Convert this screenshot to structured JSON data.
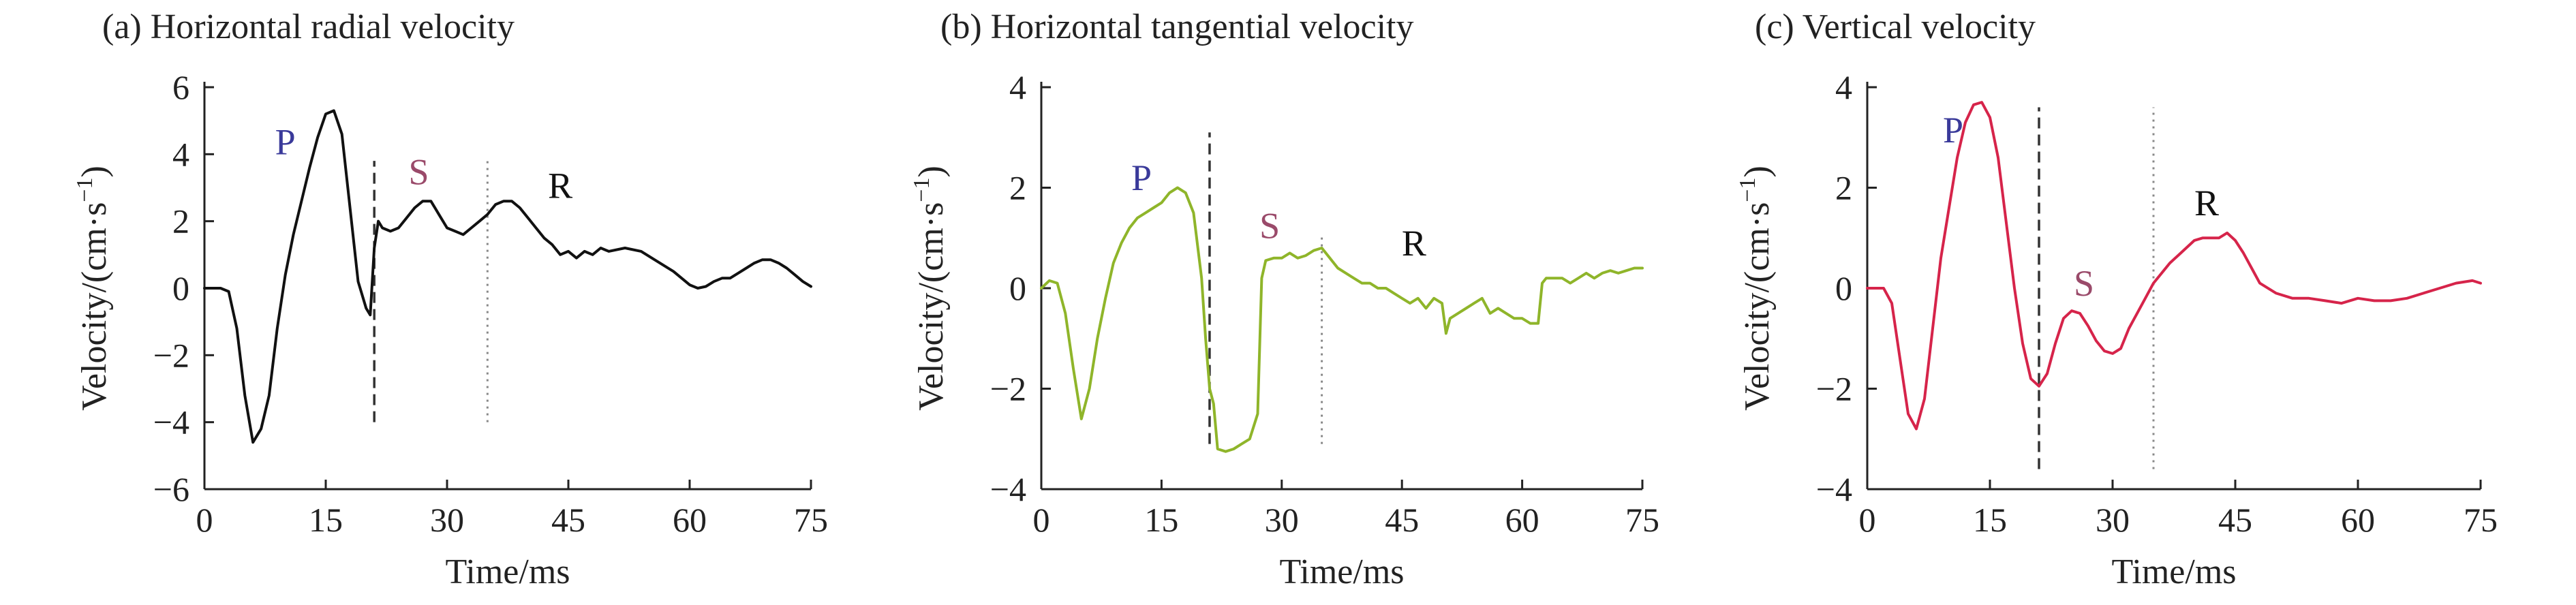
{
  "chart_data": [
    {
      "type": "line",
      "title": "(a) Horizontal radial velocity",
      "xlabel": "Time/ms",
      "ylabel": "Velocity/(cm·s",
      "ylabel_sup": "−1",
      "ylabel_close": ")",
      "xlim": [
        0,
        75
      ],
      "ylim": [
        -6,
        6
      ],
      "x_ticks": [
        0,
        15,
        30,
        45,
        60,
        75
      ],
      "x_tick_labels": [
        "0",
        "15",
        "30",
        "45",
        "60",
        "75"
      ],
      "y_ticks": [
        -6,
        -4,
        -2,
        0,
        2,
        4,
        6
      ],
      "y_tick_labels": [
        "−6",
        "−4",
        "−2",
        "0",
        "2",
        "4",
        "6"
      ],
      "grid": false,
      "series": [
        {
          "color": "#111111",
          "x": [
            0,
            2,
            3,
            4,
            5,
            6,
            7,
            8,
            9,
            10,
            11,
            12,
            13,
            14,
            15,
            16,
            17,
            18,
            19,
            20,
            20.5,
            21,
            21.5,
            22,
            23,
            24,
            25,
            26,
            27,
            28,
            29,
            30,
            31,
            32,
            33,
            34,
            35,
            36,
            37,
            38,
            39,
            40,
            41,
            42,
            43,
            44,
            45,
            46,
            47,
            48,
            49,
            50,
            52,
            54,
            56,
            58,
            60,
            61,
            62,
            63,
            64,
            65,
            66,
            67,
            68,
            69,
            70,
            71,
            72,
            73,
            74,
            75
          ],
          "y": [
            0,
            0,
            -0.1,
            -1.2,
            -3.2,
            -4.6,
            -4.2,
            -3.2,
            -1.2,
            0.4,
            1.6,
            2.6,
            3.6,
            4.5,
            5.2,
            5.3,
            4.6,
            2.4,
            0.2,
            -0.6,
            -0.8,
            1.2,
            2.0,
            1.8,
            1.7,
            1.8,
            2.1,
            2.4,
            2.6,
            2.6,
            2.2,
            1.8,
            1.7,
            1.6,
            1.8,
            2.0,
            2.2,
            2.5,
            2.6,
            2.6,
            2.4,
            2.1,
            1.8,
            1.5,
            1.3,
            1.0,
            1.1,
            0.9,
            1.1,
            1.0,
            1.2,
            1.1,
            1.2,
            1.1,
            0.8,
            0.5,
            0.1,
            0,
            0.05,
            0.2,
            0.3,
            0.3,
            0.45,
            0.6,
            0.75,
            0.85,
            0.85,
            0.75,
            0.6,
            0.4,
            0.2,
            0.05
          ]
        }
      ],
      "vlines": [
        {
          "x": 21,
          "y_from": -4,
          "y_to": 3.8,
          "style": "dashed",
          "color": "#333333"
        },
        {
          "x": 35,
          "y_from": -4,
          "y_to": 3.8,
          "style": "dotted",
          "color": "#888888"
        }
      ],
      "annotations": [
        {
          "text": "P",
          "x": 10,
          "y": 4.0,
          "color": "#3a3a9a"
        },
        {
          "text": "S",
          "x": 26.5,
          "y": 3.1,
          "color": "#9a4a6a"
        },
        {
          "text": "R",
          "x": 44,
          "y": 2.7,
          "color": "#111111"
        }
      ]
    },
    {
      "type": "line",
      "title": "(b) Horizontal tangential velocity",
      "xlabel": "Time/ms",
      "ylabel": "Velocity/(cm·s",
      "ylabel_sup": "−1",
      "ylabel_close": ")",
      "xlim": [
        0,
        75
      ],
      "ylim": [
        -4,
        4
      ],
      "x_ticks": [
        0,
        15,
        30,
        45,
        60,
        75
      ],
      "x_tick_labels": [
        "0",
        "15",
        "30",
        "45",
        "60",
        "75"
      ],
      "y_ticks": [
        -4,
        -2,
        0,
        2,
        4
      ],
      "y_tick_labels": [
        "−4",
        "−2",
        "0",
        "2",
        "4"
      ],
      "grid": false,
      "series": [
        {
          "color": "#8fb52a",
          "x": [
            0,
            1,
            2,
            3,
            4,
            5,
            6,
            7,
            8,
            9,
            10,
            11,
            12,
            13,
            14,
            15,
            16,
            17,
            18,
            19,
            20,
            20.5,
            21,
            21.5,
            22,
            23,
            24,
            25,
            26,
            27,
            27.5,
            28,
            29,
            30,
            31,
            32,
            33,
            34,
            35,
            36,
            37,
            38,
            39,
            40,
            41,
            42,
            43,
            44,
            45,
            46,
            47,
            48,
            49,
            50,
            50.5,
            51,
            52,
            53,
            54,
            55,
            56,
            57,
            58,
            59,
            60,
            61,
            62,
            62.5,
            63,
            64,
            65,
            66,
            67,
            68,
            69,
            70,
            71,
            72,
            73,
            74,
            75
          ],
          "y": [
            0,
            0.15,
            0.1,
            -0.5,
            -1.6,
            -2.6,
            -2.0,
            -1.0,
            -0.2,
            0.5,
            0.9,
            1.2,
            1.4,
            1.5,
            1.6,
            1.7,
            1.9,
            2.0,
            1.9,
            1.5,
            0.2,
            -1.0,
            -2.0,
            -2.3,
            -3.2,
            -3.25,
            -3.2,
            -3.1,
            -3.0,
            -2.5,
            0.2,
            0.55,
            0.6,
            0.6,
            0.7,
            0.6,
            0.65,
            0.75,
            0.8,
            0.6,
            0.4,
            0.3,
            0.2,
            0.1,
            0.1,
            0,
            0,
            -0.1,
            -0.2,
            -0.3,
            -0.2,
            -0.4,
            -0.2,
            -0.3,
            -0.9,
            -0.6,
            -0.5,
            -0.4,
            -0.3,
            -0.2,
            -0.5,
            -0.4,
            -0.5,
            -0.6,
            -0.6,
            -0.7,
            -0.7,
            0.1,
            0.2,
            0.2,
            0.2,
            0.1,
            0.2,
            0.3,
            0.2,
            0.3,
            0.35,
            0.3,
            0.35,
            0.4,
            0.4
          ]
        }
      ],
      "vlines": [
        {
          "x": 21,
          "y_from": -3.1,
          "y_to": 3.1,
          "style": "dashed",
          "color": "#333333"
        },
        {
          "x": 35,
          "y_from": -3.1,
          "y_to": 1.1,
          "style": "dotted",
          "color": "#888888"
        }
      ],
      "annotations": [
        {
          "text": "P",
          "x": 12.5,
          "y": 1.95,
          "color": "#3a3a9a"
        },
        {
          "text": "S",
          "x": 28.5,
          "y": 1.0,
          "color": "#9a4a6a"
        },
        {
          "text": "R",
          "x": 46.5,
          "y": 0.65,
          "color": "#111111"
        }
      ]
    },
    {
      "type": "line",
      "title": "(c) Vertical velocity",
      "xlabel": "Time/ms",
      "ylabel": "Velocity/(cm·s",
      "ylabel_sup": "−1",
      "ylabel_close": ")",
      "xlim": [
        0,
        75
      ],
      "ylim": [
        -4,
        4
      ],
      "x_ticks": [
        0,
        15,
        30,
        45,
        60,
        75
      ],
      "x_tick_labels": [
        "0",
        "15",
        "30",
        "45",
        "60",
        "75"
      ],
      "y_ticks": [
        -4,
        -2,
        0,
        2,
        4
      ],
      "y_tick_labels": [
        "−4",
        "−2",
        "0",
        "2",
        "4"
      ],
      "grid": false,
      "series": [
        {
          "color": "#d6244a",
          "x": [
            0,
            1,
            2,
            3,
            4,
            5,
            6,
            7,
            8,
            9,
            10,
            11,
            12,
            13,
            14,
            15,
            16,
            17,
            18,
            19,
            20,
            21,
            22,
            23,
            24,
            25,
            26,
            27,
            28,
            29,
            30,
            31,
            32,
            33,
            34,
            35,
            36,
            37,
            38,
            39,
            40,
            41,
            42,
            43,
            44,
            45,
            46,
            47,
            48,
            50,
            52,
            54,
            56,
            58,
            60,
            62,
            64,
            66,
            68,
            70,
            72,
            74,
            75
          ],
          "y": [
            0,
            0,
            0,
            -0.3,
            -1.4,
            -2.5,
            -2.8,
            -2.2,
            -0.8,
            0.6,
            1.6,
            2.6,
            3.3,
            3.65,
            3.7,
            3.4,
            2.6,
            1.3,
            0,
            -1.1,
            -1.8,
            -1.95,
            -1.7,
            -1.1,
            -0.6,
            -0.45,
            -0.5,
            -0.75,
            -1.05,
            -1.25,
            -1.3,
            -1.2,
            -0.8,
            -0.5,
            -0.2,
            0.1,
            0.3,
            0.5,
            0.65,
            0.8,
            0.95,
            1.0,
            1.0,
            1.0,
            1.1,
            0.95,
            0.7,
            0.4,
            0.1,
            -0.1,
            -0.2,
            -0.2,
            -0.25,
            -0.3,
            -0.2,
            -0.25,
            -0.25,
            -0.2,
            -0.1,
            0,
            0.1,
            0.15,
            0.1
          ]
        }
      ],
      "vlines": [
        {
          "x": 21,
          "y_from": -3.6,
          "y_to": 3.6,
          "style": "dashed",
          "color": "#333333"
        },
        {
          "x": 35,
          "y_from": -3.6,
          "y_to": 3.6,
          "style": "dotted",
          "color": "#888888"
        }
      ],
      "annotations": [
        {
          "text": "P",
          "x": 10.5,
          "y": 2.9,
          "color": "#3a3a9a"
        },
        {
          "text": "S",
          "x": 26.5,
          "y": -0.15,
          "color": "#9a4a6a"
        },
        {
          "text": "R",
          "x": 41.5,
          "y": 1.45,
          "color": "#111111"
        }
      ]
    }
  ]
}
